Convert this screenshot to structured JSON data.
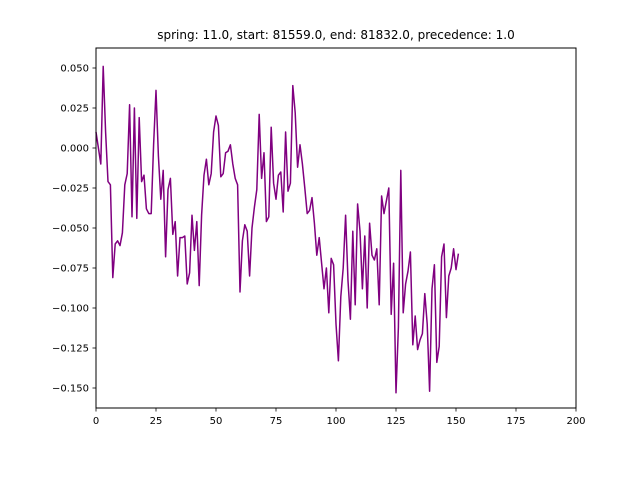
{
  "chart_data": {
    "type": "line",
    "title": "spring: 11.0, start: 81559.0, end: 81832.0, precedence: 1.0",
    "xlabel": "",
    "ylabel": "",
    "xlim": [
      0,
      200
    ],
    "ylim": [
      -0.1625,
      0.0625
    ],
    "xticks": [
      0,
      25,
      50,
      75,
      100,
      125,
      150,
      175,
      200
    ],
    "xtick_labels": [
      "0",
      "25",
      "50",
      "75",
      "100",
      "125",
      "150",
      "175",
      "200"
    ],
    "yticks": [
      0.05,
      0.025,
      0.0,
      -0.025,
      -0.05,
      -0.075,
      -0.1,
      -0.125,
      -0.15
    ],
    "ytick_labels": [
      "0.050",
      "0.025",
      "0.000",
      "−0.025",
      "−0.050",
      "−0.075",
      "−0.100",
      "−0.125",
      "−0.150"
    ],
    "grid": false,
    "series": [
      {
        "color": "#800080",
        "x": [
          0,
          1,
          2,
          3,
          4,
          5,
          6,
          7,
          8,
          9,
          10,
          11,
          12,
          13,
          14,
          15,
          16,
          17,
          18,
          19,
          20,
          21,
          22,
          23,
          24,
          25,
          26,
          27,
          28,
          29,
          30,
          31,
          32,
          33,
          34,
          35,
          36,
          37,
          38,
          39,
          40,
          41,
          42,
          43,
          44,
          45,
          46,
          47,
          48,
          49,
          50,
          51,
          52,
          53,
          54,
          55,
          56,
          57,
          58,
          59,
          60,
          61,
          62,
          63,
          64,
          65,
          66,
          67,
          68,
          69,
          70,
          71,
          72,
          73,
          74,
          75,
          76,
          77,
          78,
          79,
          80,
          81,
          82,
          83,
          84,
          85,
          86,
          87,
          88,
          89,
          90,
          91,
          92,
          93,
          94,
          95,
          96,
          97,
          98,
          99,
          100,
          101,
          102,
          103,
          104,
          105,
          106,
          107,
          108,
          109,
          110,
          111,
          112,
          113,
          114,
          115,
          116,
          117,
          118,
          119,
          120,
          121,
          122,
          123,
          124,
          125,
          126,
          127,
          128,
          129,
          130,
          131,
          132,
          133,
          134,
          135,
          136,
          137,
          138,
          139,
          140,
          141,
          142,
          143,
          144,
          145,
          146,
          147,
          148,
          149,
          150,
          151
        ],
        "y": [
          0.01,
          0.0,
          -0.01,
          0.051,
          0.01,
          -0.021,
          -0.023,
          -0.081,
          -0.06,
          -0.058,
          -0.061,
          -0.053,
          -0.023,
          -0.016,
          0.027,
          -0.043,
          0.025,
          -0.044,
          0.019,
          -0.021,
          -0.017,
          -0.038,
          -0.041,
          -0.041,
          0.002,
          0.036,
          -0.005,
          -0.032,
          -0.014,
          -0.068,
          -0.026,
          -0.019,
          -0.054,
          -0.046,
          -0.08,
          -0.056,
          -0.056,
          -0.055,
          -0.085,
          -0.078,
          -0.042,
          -0.064,
          -0.046,
          -0.086,
          -0.042,
          -0.017,
          -0.007,
          -0.023,
          -0.016,
          0.01,
          0.02,
          0.014,
          -0.018,
          -0.016,
          -0.003,
          -0.002,
          0.002,
          -0.01,
          -0.019,
          -0.023,
          -0.09,
          -0.058,
          -0.048,
          -0.052,
          -0.08,
          -0.05,
          -0.037,
          -0.026,
          0.021,
          -0.019,
          -0.003,
          -0.046,
          -0.043,
          0.013,
          -0.022,
          -0.032,
          -0.017,
          -0.015,
          -0.04,
          0.01,
          -0.027,
          -0.022,
          0.039,
          0.022,
          -0.012,
          0.002,
          -0.01,
          -0.025,
          -0.041,
          -0.039,
          -0.031,
          -0.047,
          -0.067,
          -0.056,
          -0.072,
          -0.088,
          -0.075,
          -0.103,
          -0.069,
          -0.073,
          -0.11,
          -0.133,
          -0.093,
          -0.075,
          -0.042,
          -0.083,
          -0.107,
          -0.052,
          -0.098,
          -0.035,
          -0.052,
          -0.088,
          -0.055,
          -0.1,
          -0.047,
          -0.067,
          -0.07,
          -0.063,
          -0.098,
          -0.03,
          -0.041,
          -0.033,
          -0.025,
          -0.104,
          -0.072,
          -0.153,
          -0.112,
          -0.014,
          -0.103,
          -0.085,
          -0.077,
          -0.065,
          -0.123,
          -0.105,
          -0.126,
          -0.12,
          -0.116,
          -0.091,
          -0.11,
          -0.152,
          -0.088,
          -0.073,
          -0.134,
          -0.124,
          -0.068,
          -0.06,
          -0.106,
          -0.08,
          -0.075,
          -0.063,
          -0.076,
          -0.066
        ]
      }
    ]
  }
}
